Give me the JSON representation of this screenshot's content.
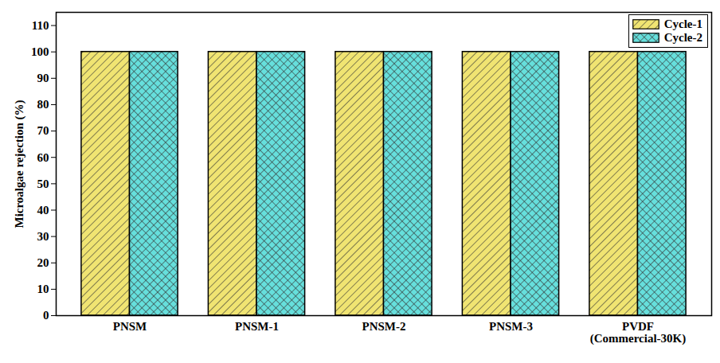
{
  "chart_data": {
    "type": "bar",
    "categories": [
      "PNSM",
      "PNSM-1",
      "PNSM-2",
      "PNSM-3",
      "PVDF\n(Commercial-30K)"
    ],
    "y_label": "Microalgae rejection (%)",
    "series": [
      {
        "name": "Cycle-1",
        "color": "#f0e472",
        "values": [
          100,
          100,
          100,
          100,
          100
        ]
      },
      {
        "name": "Cycle-2",
        "color": "#66dfdc",
        "values": [
          100,
          100,
          100,
          100,
          100
        ]
      }
    ],
    "ylim": [
      0,
      115
    ],
    "yticks": [
      0,
      10,
      20,
      30,
      40,
      50,
      60,
      70,
      80,
      90,
      100,
      110
    ],
    "grid": false,
    "legend": "top-right"
  }
}
